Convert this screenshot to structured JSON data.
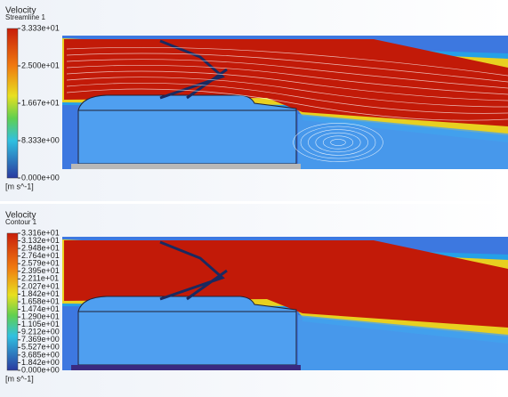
{
  "panels": [
    {
      "legend": {
        "title": "Velocity",
        "subtitle": "Streamline 1",
        "ticks": [
          "3.333e+01",
          "2.500e+01",
          "1.667e+01",
          "8.333e+00",
          "0.000e+00"
        ],
        "unit": "[m s^-1]"
      }
    },
    {
      "legend": {
        "title": "Velocity",
        "subtitle": "Contour 1",
        "ticks": [
          "3.316e+01",
          "3.132e+01",
          "2.948e+01",
          "2.764e+01",
          "2.579e+01",
          "2.395e+01",
          "2.211e+01",
          "2.027e+01",
          "1.842e+01",
          "1.658e+01",
          "1.474e+01",
          "1.290e+01",
          "1.105e+01",
          "9.212e+00",
          "7.369e+00",
          "5.527e+00",
          "3.685e+00",
          "1.842e+00",
          "0.000e+00"
        ],
        "unit": "[m s^-1]"
      }
    }
  ]
}
